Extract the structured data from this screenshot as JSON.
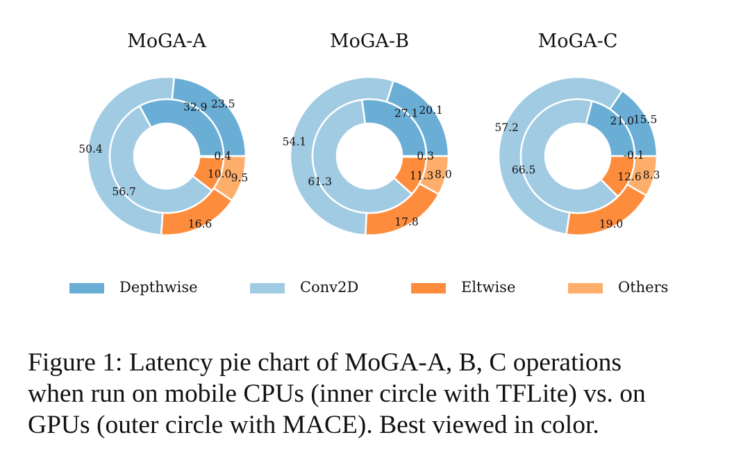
{
  "chart_data": {
    "type": "pie",
    "series_names": [
      "Depthwise",
      "Conv2D",
      "Eltwise",
      "Others"
    ],
    "colors": {
      "Depthwise": "#6aaed6",
      "Conv2D": "#a0cbe2",
      "Eltwise": "#fd8d3c",
      "Others": "#fdae6b"
    },
    "charts": [
      {
        "title": "MoGA-A",
        "inner": [
          {
            "category": "Depthwise",
            "value": 32.9
          },
          {
            "category": "Conv2D",
            "value": 56.7
          },
          {
            "category": "Eltwise",
            "value": 10.0
          },
          {
            "category": "Others",
            "value": 0.4
          }
        ],
        "outer": [
          {
            "category": "Depthwise",
            "value": 23.5
          },
          {
            "category": "Conv2D",
            "value": 50.4
          },
          {
            "category": "Eltwise",
            "value": 16.6
          },
          {
            "category": "Others",
            "value": 9.5
          }
        ]
      },
      {
        "title": "MoGA-B",
        "inner": [
          {
            "category": "Depthwise",
            "value": 27.1
          },
          {
            "category": "Conv2D",
            "value": 61.3
          },
          {
            "category": "Eltwise",
            "value": 11.3
          },
          {
            "category": "Others",
            "value": 0.3
          }
        ],
        "outer": [
          {
            "category": "Depthwise",
            "value": 20.1
          },
          {
            "category": "Conv2D",
            "value": 54.1
          },
          {
            "category": "Eltwise",
            "value": 17.8
          },
          {
            "category": "Others",
            "value": 8.0
          }
        ]
      },
      {
        "title": "MoGA-C",
        "inner": [
          {
            "category": "Depthwise",
            "value": 21.0
          },
          {
            "category": "Conv2D",
            "value": 66.5
          },
          {
            "category": "Eltwise",
            "value": 12.6
          },
          {
            "category": "Others",
            "value": -0.1
          }
        ],
        "outer": [
          {
            "category": "Depthwise",
            "value": 15.5
          },
          {
            "category": "Conv2D",
            "value": 57.2
          },
          {
            "category": "Eltwise",
            "value": 19.0
          },
          {
            "category": "Others",
            "value": 8.3
          }
        ]
      }
    ],
    "legend_placement": "bottom",
    "legend": [
      "Depthwise",
      "Conv2D",
      "Eltwise",
      "Others"
    ]
  },
  "caption": {
    "lines": [
      "Figure 1: Latency pie chart of MoGA-A, B, C operations",
      "when run on mobile CPUs (inner circle with TFLite) vs. on",
      "GPUs (outer circle with MACE). Best viewed in color."
    ]
  }
}
